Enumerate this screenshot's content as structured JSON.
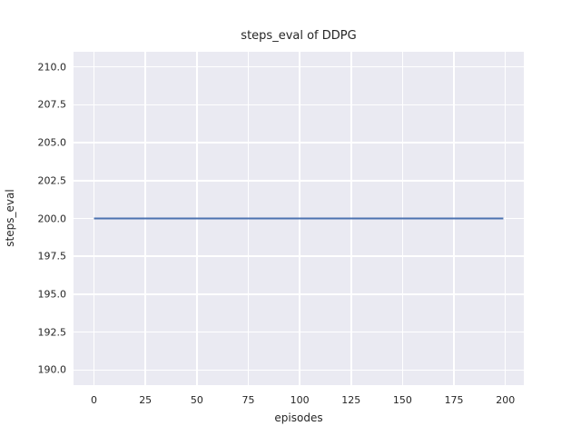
{
  "chart_data": {
    "type": "line",
    "title": "steps_eval of DDPG",
    "xlabel": "episodes",
    "ylabel": "steps_eval",
    "xlim": [
      -9.95,
      208.95
    ],
    "ylim": [
      189.0,
      211.0
    ],
    "grid": true,
    "legend": false,
    "xticks": {
      "values": [
        0,
        25,
        50,
        75,
        100,
        125,
        150,
        175,
        200
      ],
      "labels": [
        "0",
        "25",
        "50",
        "75",
        "100",
        "125",
        "150",
        "175",
        "200"
      ]
    },
    "yticks": {
      "values": [
        190.0,
        192.5,
        195.0,
        197.5,
        200.0,
        202.5,
        205.0,
        207.5,
        210.0
      ],
      "labels": [
        "190.0",
        "192.5",
        "195.0",
        "197.5",
        "200.0",
        "202.5",
        "205.0",
        "207.5",
        "210.0"
      ]
    },
    "series": [
      {
        "name": "steps_eval of DDPG",
        "color": "#4c72b0",
        "linewidth": 2,
        "x": [
          0,
          199
        ],
        "y": [
          200.0,
          200.0
        ]
      }
    ],
    "style": {
      "figure_bg": "#ffffff",
      "plot_bg": "#eaeaf2",
      "grid_color": "#ffffff",
      "text_color": "#262626"
    }
  }
}
